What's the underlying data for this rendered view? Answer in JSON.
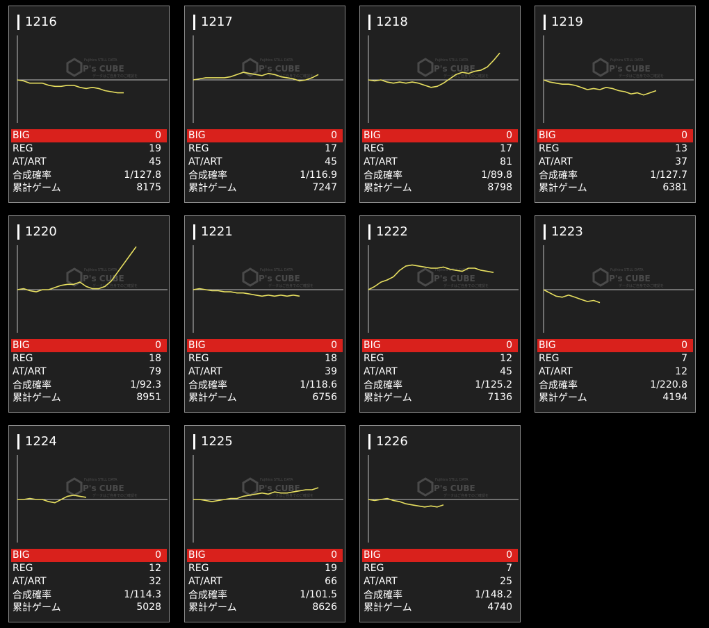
{
  "row_labels": {
    "big": "BIG",
    "reg": "REG",
    "at": "AT/ART",
    "rate": "合成確率",
    "games": "累計ゲーム"
  },
  "watermark": {
    "brand": "P's CUBE",
    "top": "Fujihira STILL DATA",
    "bottom": "データはご自身でのご確認を"
  },
  "colors": {
    "card_bg": "#202020",
    "big_bar": "#d9211c",
    "line": "#e8e060",
    "axis": "#bfbfbf",
    "border": "#8a8a8a"
  },
  "machines": [
    {
      "id": "1216",
      "big": "0",
      "reg": "19",
      "at": "45",
      "rate": "1/127.8",
      "games": "8175",
      "graph": [
        0,
        -1,
        -3,
        -3,
        -3,
        -5,
        -6,
        -6,
        -5,
        -5,
        -7,
        -8,
        -7,
        -8,
        -10,
        -11,
        -12,
        -12
      ]
    },
    {
      "id": "1217",
      "big": "0",
      "reg": "17",
      "at": "45",
      "rate": "1/116.9",
      "games": "7247",
      "graph": [
        0,
        1,
        2,
        2,
        2,
        2,
        3,
        5,
        7,
        6,
        5,
        4,
        6,
        5,
        3,
        2,
        1,
        -1,
        0,
        2,
        5
      ]
    },
    {
      "id": "1218",
      "big": "0",
      "reg": "17",
      "at": "81",
      "rate": "1/89.8",
      "games": "8798",
      "graph": [
        0,
        -1,
        0,
        -2,
        -3,
        -2,
        -3,
        -2,
        -3,
        -5,
        -7,
        -6,
        -3,
        1,
        5,
        7,
        6,
        8,
        9,
        12,
        18,
        25
      ]
    },
    {
      "id": "1219",
      "big": "0",
      "reg": "13",
      "at": "37",
      "rate": "1/127.7",
      "games": "6381",
      "graph": [
        0,
        -2,
        -3,
        -4,
        -4,
        -5,
        -7,
        -9,
        -8,
        -9,
        -7,
        -8,
        -10,
        -11,
        -13,
        -12,
        -14,
        -12,
        -10
      ]
    },
    {
      "id": "1220",
      "big": "0",
      "reg": "18",
      "at": "79",
      "rate": "1/92.3",
      "games": "8951",
      "graph": [
        0,
        1,
        -1,
        -2,
        0,
        0,
        2,
        4,
        5,
        5,
        7,
        3,
        1,
        1,
        3,
        8,
        16,
        24,
        32,
        40
      ]
    },
    {
      "id": "1221",
      "big": "0",
      "reg": "18",
      "at": "39",
      "rate": "1/118.6",
      "games": "6756",
      "graph": [
        0,
        1,
        0,
        -1,
        -1,
        -2,
        -2,
        -3,
        -3,
        -4,
        -5,
        -6,
        -5,
        -6,
        -5,
        -6,
        -5,
        -6
      ]
    },
    {
      "id": "1222",
      "big": "0",
      "reg": "12",
      "at": "45",
      "rate": "1/125.2",
      "games": "7136",
      "graph": [
        0,
        3,
        7,
        9,
        12,
        18,
        22,
        23,
        22,
        21,
        20,
        20,
        21,
        19,
        18,
        17,
        20,
        20,
        18,
        17,
        16
      ]
    },
    {
      "id": "1223",
      "big": "0",
      "reg": "7",
      "at": "12",
      "rate": "1/220.8",
      "games": "4194",
      "graph": [
        0,
        -3,
        -6,
        -7,
        -5,
        -7,
        -9,
        -11,
        -10,
        -12
      ]
    },
    {
      "id": "1224",
      "big": "0",
      "reg": "12",
      "at": "32",
      "rate": "1/114.3",
      "games": "5028",
      "graph": [
        0,
        0,
        1,
        0,
        0,
        -2,
        -3,
        0,
        3,
        4,
        3,
        2
      ]
    },
    {
      "id": "1225",
      "big": "0",
      "reg": "19",
      "at": "66",
      "rate": "1/101.5",
      "games": "8626",
      "graph": [
        0,
        0,
        -1,
        -2,
        -1,
        0,
        1,
        1,
        3,
        4,
        5,
        6,
        5,
        7,
        6,
        6,
        7,
        8,
        9,
        9,
        11
      ]
    },
    {
      "id": "1226",
      "big": "0",
      "reg": "7",
      "at": "25",
      "rate": "1/148.2",
      "games": "4740",
      "graph": [
        0,
        -1,
        0,
        1,
        -1,
        -2,
        -4,
        -5,
        -6,
        -7,
        -6,
        -7,
        -5
      ]
    }
  ]
}
